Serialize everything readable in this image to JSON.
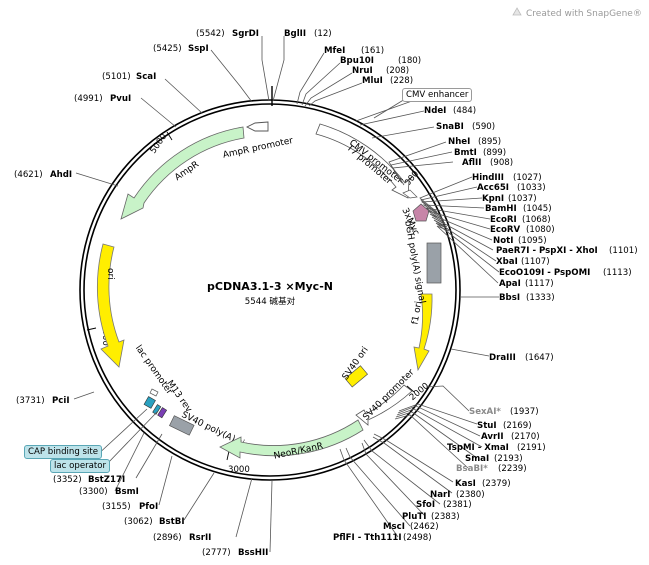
{
  "brand": "Created with SnapGene®",
  "plasmid": {
    "name": "pCDNA3.1-3 ×Myc-N",
    "size_label": "5544 碱基对"
  },
  "colors": {
    "ampr": "#c8f3c8",
    "neor": "#c8f3c8",
    "ori": "#ffee00",
    "sv40_ori": "#ffee00",
    "myc": "#c785a8",
    "bgh": "#9aa1a8",
    "promoter": "#ffffff",
    "small_feature": "#2aa1c0"
  },
  "ticks": [
    "1000",
    "2000",
    "3000",
    "4000",
    "5000"
  ],
  "features": {
    "ampr_promoter": "AmpR promoter",
    "ampr": "AmpR",
    "cmv_promoter": "CMV promoter",
    "t7_promoter": "T7 promoter",
    "myc": "3xMyc",
    "bgh": "bGH poly(A) signal",
    "f1_ori": "f1 ori",
    "sv40_ori": "SV40 ori",
    "sv40_promoter": "SV40 promoter",
    "neor": "NeoR/KanR",
    "sv40_polya": "SV40 poly(A) signal",
    "m13_rev": "M13 rev",
    "lac_promoter": "lac promoter",
    "ori": "ori",
    "cmv_enhancer": "CMV enhancer",
    "cap_site": "CAP binding site",
    "lac_operator": "lac operator"
  },
  "sites": [
    {
      "name": "SgrDI",
      "pos": "(5542)"
    },
    {
      "name": "BglII",
      "pos": "(12)"
    },
    {
      "name": "SspI",
      "pos": "(5425)"
    },
    {
      "name": "MfeI",
      "pos": "(161)"
    },
    {
      "name": "Bpu10I",
      "pos": "(180)"
    },
    {
      "name": "NruI",
      "pos": "(208)"
    },
    {
      "name": "ScaI",
      "pos": "(5101)"
    },
    {
      "name": "MluI",
      "pos": "(228)"
    },
    {
      "name": "PvuI",
      "pos": "(4991)"
    },
    {
      "name": "NdeI",
      "pos": "(484)"
    },
    {
      "name": "SnaBI",
      "pos": "(590)"
    },
    {
      "name": "NheI",
      "pos": "(895)"
    },
    {
      "name": "BmtI",
      "pos": "(899)"
    },
    {
      "name": "AflII",
      "pos": "(908)"
    },
    {
      "name": "AhdI",
      "pos": "(4621)"
    },
    {
      "name": "HindIII",
      "pos": "(1027)"
    },
    {
      "name": "Acc65I",
      "pos": "(1033)"
    },
    {
      "name": "KpnI",
      "pos": "(1037)"
    },
    {
      "name": "BamHI",
      "pos": "(1045)"
    },
    {
      "name": "EcoRI",
      "pos": "(1068)"
    },
    {
      "name": "EcoRV",
      "pos": "(1080)"
    },
    {
      "name": "NotI",
      "pos": "(1095)"
    },
    {
      "name": "PaeR7I - PspXI - XhoI",
      "pos": "(1101)"
    },
    {
      "name": "XbaI",
      "pos": "(1107)"
    },
    {
      "name": "EcoO109I - PspOMI",
      "pos": "(1113)"
    },
    {
      "name": "ApaI",
      "pos": "(1117)"
    },
    {
      "name": "BbsI",
      "pos": "(1333)"
    },
    {
      "name": "DraIII",
      "pos": "(1647)"
    },
    {
      "name": "PciI",
      "pos": "(3731)"
    },
    {
      "name": "SexAI*",
      "pos": "(1937)"
    },
    {
      "name": "StuI",
      "pos": "(2169)"
    },
    {
      "name": "AvrII",
      "pos": "(2170)"
    },
    {
      "name": "TspMI - XmaI",
      "pos": "(2191)"
    },
    {
      "name": "SmaI",
      "pos": "(2193)"
    },
    {
      "name": "BsaBI*",
      "pos": "(2239)"
    },
    {
      "name": "BstZ17I",
      "pos": "(3352)"
    },
    {
      "name": "BsmI",
      "pos": "(3300)"
    },
    {
      "name": "KasI",
      "pos": "(2379)"
    },
    {
      "name": "NarI",
      "pos": "(2380)"
    },
    {
      "name": "PfoI",
      "pos": "(3155)"
    },
    {
      "name": "SfoI",
      "pos": "(2381)"
    },
    {
      "name": "PluTI",
      "pos": "(2383)"
    },
    {
      "name": "BstBI",
      "pos": "(3062)"
    },
    {
      "name": "MscI",
      "pos": "(2462)"
    },
    {
      "name": "PflFI - Tth111I",
      "pos": "(2498)"
    },
    {
      "name": "RsrII",
      "pos": "(2896)"
    },
    {
      "name": "BssHII",
      "pos": "(2777)"
    }
  ]
}
